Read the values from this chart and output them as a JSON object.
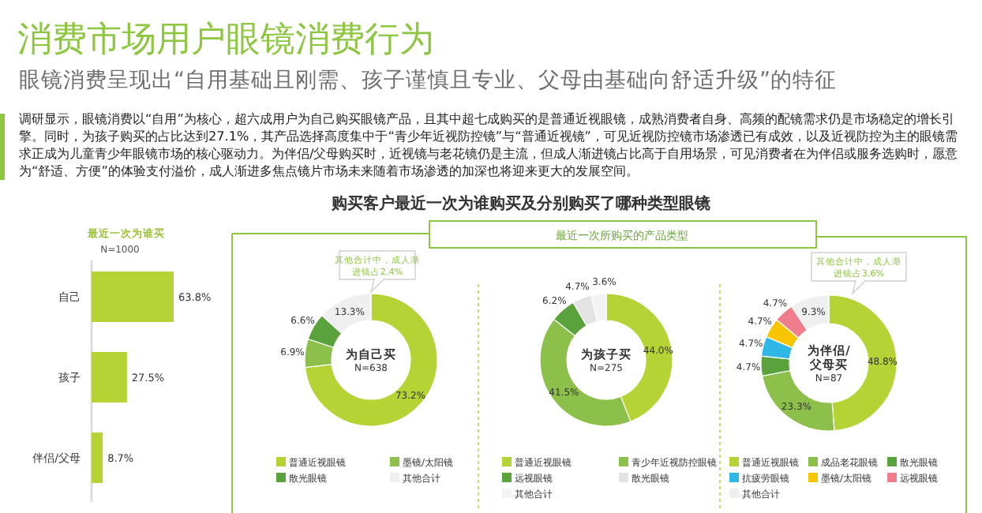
{
  "chart_data": [
    {
      "type": "other",
      "title": "消费市场用户眼镜消费行为",
      "subtitle": "眼镜消费呈现出“自用基础且刚需、孩子谨慎且专业、父母由基础向舒适升级”的特征",
      "annotations": [
        "调研显示，眼镜消费以“自用”为核心，超六成用户为自己购买眼镜产品，且其中超七成购买的是普通近视眼镜，成熟消费者自身、高频的配镜需求仍是市场稳定的增长引擎。同时，为孩子购买的占比达到27.1%，其产品选择高度集中于“青少年近视防控镜”与“普通近视镜”，可见近视防控镜市场渗透已有成效，以及近视防控为主的眼镜需求正成为儿童青少年眼镜市场的核心驱动力。为伴侣/父母购买时，近视镜与老花镜仍是主流，但成人渐进镜占比高于自用场景，可见消费者在为伴侣或服务选购时，愿意为“舒适、方便”的体验支付溢价，成人渐进多焦点镜片市场未来随着市场渗透的加深也将迎来更大的发展空间。",
        "购买客户最近一次为谁购买及分别购买了哪种类型眼镜",
        "最近一次所购买的产品类型"
      ]
    },
    {
      "type": "bar",
      "orientation": "horizontal",
      "title": "最近一次为谁买",
      "subtitle": "N=1000",
      "categories": [
        "自己",
        "孩子",
        "伴侣/父母"
      ],
      "values": [
        63.8,
        27.5,
        8.7
      ],
      "value_labels": [
        "63.8%",
        "27.5%",
        "8.7%"
      ],
      "color": "#b5d334"
    },
    {
      "type": "donut",
      "title": "为自己买",
      "subtitle": "N=638",
      "categories": [
        "普通近视眼镜",
        "墨镜/太阳镜",
        "散光眼镜",
        "其他合计"
      ],
      "values": [
        73.2,
        6.9,
        6.6,
        13.3
      ],
      "colors": [
        "#b5d334",
        "#8cc04a",
        "#5aa33c",
        "#efefef"
      ],
      "value_labels": [
        "73.2%",
        "6.9%",
        "6.6%",
        "13.3%"
      ],
      "legend": "bottom",
      "annotations": [
        "其他合计中，成人渐进镜占2.4%"
      ]
    },
    {
      "type": "donut",
      "title": "为孩子买",
      "subtitle": "N=275",
      "categories": [
        "普通近视眼镜",
        "青少年近视防控眼镜",
        "远视眼镜",
        "散光眼镜",
        "其他合计"
      ],
      "values": [
        44.0,
        41.5,
        6.2,
        4.7,
        3.6
      ],
      "colors": [
        "#b5d334",
        "#8cc04a",
        "#5aa33c",
        "#e3e3e3",
        "#f3f3f3"
      ],
      "value_labels": [
        "44.0%",
        "41.5%",
        "6.2%",
        "4.7%",
        "3.6%"
      ],
      "legend": "bottom"
    },
    {
      "type": "donut",
      "title": "为伴侣/父母买",
      "subtitle": "N=87",
      "categories": [
        "普通近视眼镜",
        "成品老花眼镜",
        "散光眼镜",
        "抗疲劳眼镜",
        "墨镜/太阳镜",
        "远视眼镜",
        "其他合计"
      ],
      "values": [
        48.8,
        23.3,
        4.7,
        4.7,
        4.7,
        4.7,
        9.3
      ],
      "colors": [
        "#b5d334",
        "#8cc04a",
        "#5aa33c",
        "#2fb8e6",
        "#f7c600",
        "#ef7d8c",
        "#efefef"
      ],
      "value_labels": [
        "48.8%",
        "23.3%",
        "4.7%",
        "4.7%",
        "4.7%",
        "4.7%",
        "9.3%"
      ],
      "legend": "bottom",
      "annotations": [
        "其他合计中，成人渐进镜占3.6%"
      ]
    }
  ]
}
